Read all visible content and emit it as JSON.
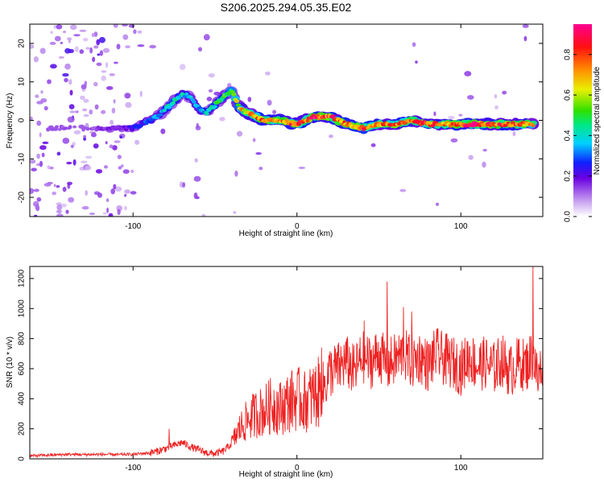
{
  "title": "S206.2025.294.05.35.E02",
  "colors": {
    "snr_line": "#ee2222",
    "axis": "#000000"
  },
  "chart_data": [
    {
      "type": "heatmap",
      "name": "spectrogram",
      "xlabel": "Height of straight line (km)",
      "ylabel": "Frequency (Hz)",
      "xlim": [
        -163,
        150
      ],
      "ylim": [
        -25,
        25
      ],
      "xticks": [
        -100,
        0,
        100
      ],
      "xtick_labels": [
        "-100",
        "0",
        "100"
      ],
      "yticks": [
        -20,
        -10,
        0,
        10,
        20
      ],
      "ytick_labels": [
        "-20",
        "-10",
        "0",
        "10",
        "20"
      ],
      "ridge": {
        "description_values": "dominant frequency ridge (height km, frequency Hz)",
        "x": [
          -160,
          -145,
          -130,
          -115,
          -105,
          -100,
          -95,
          -90,
          -85,
          -80,
          -75,
          -70,
          -65,
          -60,
          -55,
          -50,
          -45,
          -40,
          -35,
          -30,
          -25,
          -20,
          -10,
          0,
          10,
          20,
          30,
          40,
          50,
          60,
          70,
          80,
          90,
          100,
          110,
          120,
          130,
          140,
          145
        ],
        "y": [
          -2,
          -2,
          -2,
          -2,
          -2,
          -2,
          -1,
          0,
          1,
          3,
          5,
          7,
          6,
          3,
          2,
          4,
          6,
          8,
          3,
          2,
          1,
          0,
          0,
          -1,
          1,
          1,
          -1,
          -2,
          -1,
          -1,
          0,
          -1,
          -1,
          -1,
          -1,
          -1,
          -1,
          -1,
          -1
        ],
        "amplitude": [
          0.1,
          0.15,
          0.12,
          0.2,
          0.2,
          0.25,
          0.3,
          0.35,
          0.4,
          0.45,
          0.5,
          0.45,
          0.4,
          0.35,
          0.45,
          0.5,
          0.55,
          0.55,
          0.7,
          0.8,
          0.85,
          0.9,
          0.85,
          0.9,
          0.95,
          0.9,
          0.85,
          0.9,
          0.85,
          0.9,
          0.85,
          0.9,
          0.85,
          0.9,
          0.95,
          0.9,
          0.9,
          0.85,
          0.75
        ]
      },
      "colorbar": {
        "label": "Normalized spectral amplitude",
        "range": [
          0,
          0.95
        ],
        "ticks": [
          0,
          0.2,
          0.4,
          0.6,
          0.8
        ],
        "tick_labels": [
          "0.0",
          "0.2",
          "0.4",
          "0.6",
          "0.8"
        ]
      }
    },
    {
      "type": "line",
      "name": "snr",
      "xlabel": "Height of straight line (km)",
      "ylabel": "SNR (10 * v/v)",
      "xlim": [
        -163,
        150
      ],
      "ylim": [
        0,
        1280
      ],
      "xticks": [
        -100,
        0,
        100
      ],
      "xtick_labels": [
        "-100",
        "0",
        "100"
      ],
      "yticks": [
        0,
        200,
        400,
        600,
        800,
        1000,
        1200
      ],
      "ytick_labels": [
        "0",
        "200",
        "400",
        "600",
        "800",
        "1000",
        "1200"
      ],
      "series": [
        {
          "name": "SNR",
          "x": [
            -163,
            -150,
            -140,
            -130,
            -120,
            -110,
            -100,
            -95,
            -90,
            -85,
            -80,
            -75,
            -70,
            -65,
            -60,
            -55,
            -50,
            -45,
            -40,
            -35,
            -30,
            -25,
            -20,
            -15,
            -10,
            -5,
            0,
            5,
            10,
            15,
            18,
            20,
            25,
            30,
            35,
            40,
            45,
            50,
            55,
            60,
            65,
            70,
            75,
            80,
            85,
            90,
            95,
            100,
            105,
            110,
            115,
            120,
            125,
            130,
            135,
            140,
            144,
            147,
            150
          ],
          "y": [
            20,
            25,
            30,
            28,
            30,
            28,
            30,
            35,
            40,
            50,
            70,
            90,
            110,
            80,
            60,
            40,
            35,
            50,
            100,
            200,
            260,
            300,
            320,
            360,
            340,
            380,
            400,
            380,
            420,
            450,
            520,
            580,
            600,
            650,
            580,
            680,
            640,
            700,
            620,
            660,
            700,
            640,
            680,
            620,
            700,
            660,
            640,
            600,
            680,
            620,
            640,
            600,
            660,
            580,
            640,
            620,
            700,
            520,
            660
          ],
          "peaks": {
            "x": [
              -78,
              15,
              41,
              55,
              65,
              70,
              144
            ],
            "y": [
              200,
              740,
              920,
              1180,
              1010,
              980,
              1280
            ]
          }
        }
      ]
    }
  ]
}
